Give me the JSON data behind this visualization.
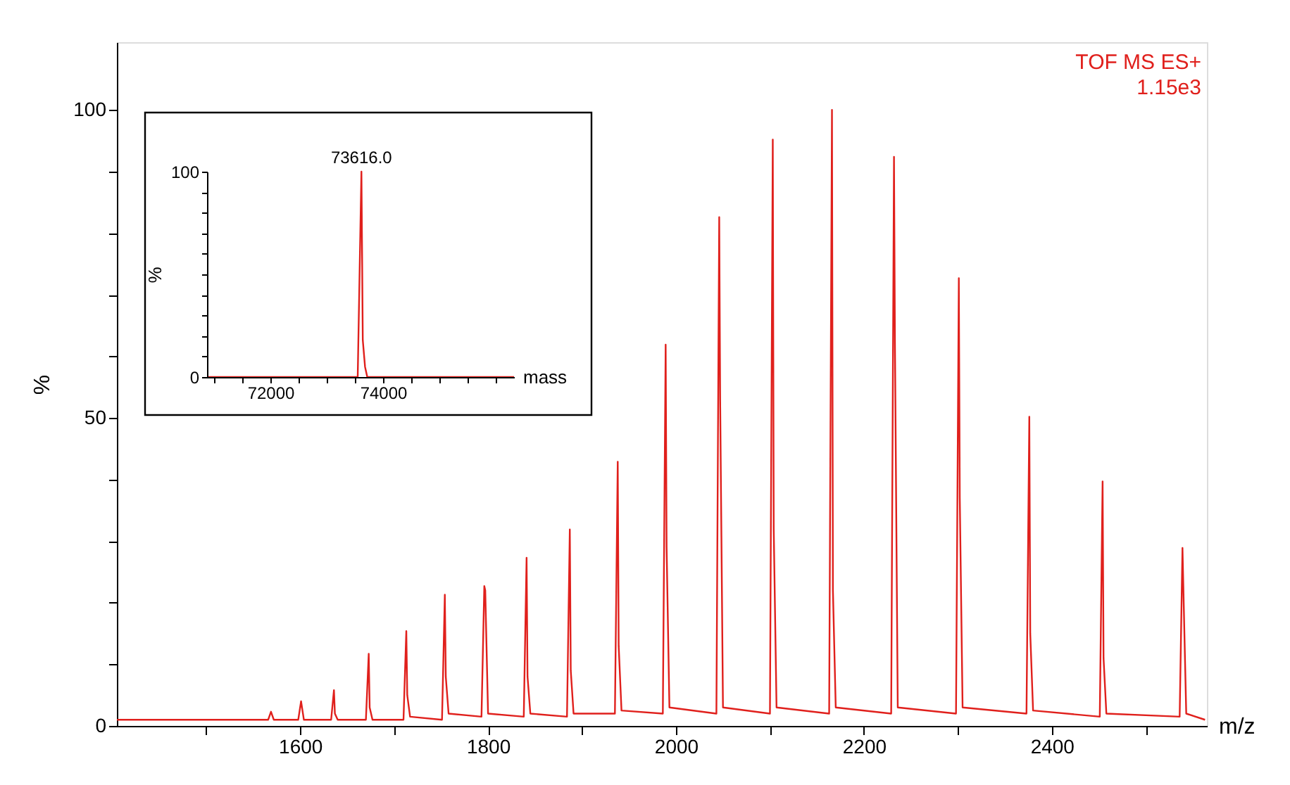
{
  "chart_data": [
    {
      "type": "line",
      "xlabel": "m/z",
      "ylabel": "%",
      "annotations": [
        "TOF MS ES+",
        "1.15e3"
      ],
      "xlim": [
        1405,
        2565
      ],
      "ylim": [
        0,
        111
      ],
      "xticks": [
        {
          "value": 1500,
          "label": null
        },
        1600,
        {
          "value": 1700,
          "label": null
        },
        1800,
        {
          "value": 1900,
          "label": null
        },
        2000,
        {
          "value": 2100,
          "label": null
        },
        2200,
        {
          "value": 2300,
          "label": null
        },
        2400,
        {
          "value": 2500,
          "label": null
        }
      ],
      "yticks": [
        0,
        {
          "value": 10,
          "label": null
        },
        {
          "value": 20,
          "label": null
        },
        {
          "value": 30,
          "label": null
        },
        {
          "value": 40,
          "label": null
        },
        50,
        {
          "value": 60,
          "label": null
        },
        {
          "value": 70,
          "label": null
        },
        {
          "value": 80,
          "label": null
        },
        {
          "value": 90,
          "label": null
        },
        100
      ],
      "grid": false,
      "legend": false,
      "marker": "none",
      "line_style": "solid",
      "series": [
        {
          "color": "#e0201c",
          "x": [
            1405,
            1566,
            1569,
            1572,
            1598,
            1601,
            1604,
            1633,
            1636,
            1637,
            1640,
            1670,
            1673,
            1674,
            1677,
            1710,
            1713,
            1714,
            1717,
            1751,
            1754,
            1755,
            1758,
            1793,
            1796,
            1797,
            1800,
            1838,
            1841,
            1842,
            1845,
            1884,
            1887,
            1888,
            1891,
            1935,
            1938,
            1939,
            1942,
            1986,
            1989,
            1990,
            1993,
            2043,
            2046,
            2047,
            2050,
            2100,
            2103,
            2104,
            2107,
            2163,
            2166,
            2167,
            2170,
            2229,
            2232,
            2233,
            2236,
            2298,
            2301,
            2302,
            2305,
            2373,
            2376,
            2377,
            2380,
            2451,
            2454,
            2455,
            2458,
            2536,
            2539,
            2540,
            2543,
            2563
          ],
          "values": [
            1,
            1,
            2.3,
            1,
            1,
            4,
            1,
            1,
            5.8,
            2,
            1,
            1,
            11.7,
            3,
            1,
            1,
            15.4,
            5,
            1.5,
            1,
            21.3,
            8,
            2,
            1.5,
            22.7,
            22,
            2,
            1.5,
            27.3,
            8,
            2,
            1.5,
            31.9,
            9,
            2,
            2,
            42.9,
            13,
            2.5,
            2,
            61.9,
            29,
            3,
            2,
            82.6,
            53,
            3,
            2,
            95.2,
            32,
            3,
            2,
            100,
            22,
            3,
            2,
            92.4,
            62,
            3,
            2,
            72.7,
            37,
            3,
            2,
            50.2,
            15,
            2.5,
            1.5,
            39.7,
            11,
            2,
            1.5,
            28.9,
            22,
            2,
            1
          ]
        }
      ]
    },
    {
      "type": "line",
      "xlabel": "mass",
      "ylabel": "%",
      "annotations": [
        {
          "text": "73616.0",
          "x": 73616,
          "y": 100
        }
      ],
      "xlim": [
        70875,
        76325
      ],
      "ylim": [
        0,
        100
      ],
      "xticks": [
        {
          "value": 71000,
          "label": null
        },
        {
          "value": 71500,
          "label": null
        },
        72000,
        {
          "value": 72500,
          "label": null
        },
        {
          "value": 73000,
          "label": null
        },
        {
          "value": 73500,
          "label": null
        },
        74000,
        {
          "value": 74500,
          "label": null
        },
        {
          "value": 75000,
          "label": null
        },
        {
          "value": 75500,
          "label": null
        },
        {
          "value": 76000,
          "label": null
        }
      ],
      "yticks": [
        0,
        {
          "value": 10,
          "label": null
        },
        {
          "value": 20,
          "label": null
        },
        {
          "value": 30,
          "label": null
        },
        {
          "value": 40,
          "label": null
        },
        {
          "value": 50,
          "label": null
        },
        {
          "value": 60,
          "label": null
        },
        {
          "value": 70,
          "label": null
        },
        {
          "value": 80,
          "label": null
        },
        {
          "value": 90,
          "label": null
        },
        100
      ],
      "grid": false,
      "legend": false,
      "marker": "none",
      "line_style": "solid",
      "series": [
        {
          "color": "#e0201c",
          "x": [
            70875,
            73550,
            73616,
            73640,
            73680,
            73720,
            76325
          ],
          "values": [
            0,
            0,
            100,
            18,
            5,
            0,
            0
          ]
        }
      ]
    }
  ]
}
